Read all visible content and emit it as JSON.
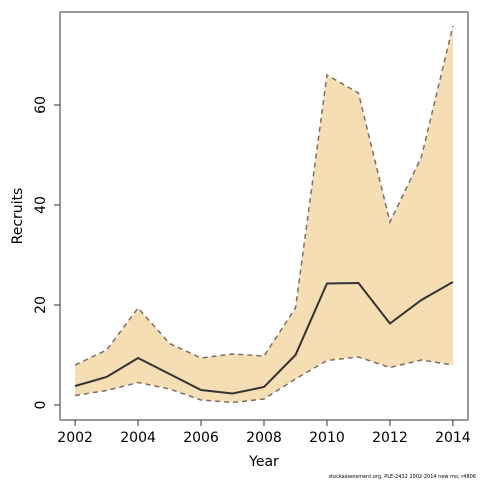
{
  "chart_data": {
    "type": "line",
    "x_label": "Year",
    "y_label": "Recruits",
    "footnote": "stockassessment.org, PLE-2432 2002-2014 new mo, r4806",
    "x": [
      2002,
      2003,
      2004,
      2005,
      2006,
      2007,
      2008,
      2009,
      2010,
      2011,
      2012,
      2013,
      2014
    ],
    "values": [
      3.8,
      5.6,
      9.4,
      6.2,
      3.0,
      2.3,
      3.6,
      10,
      24.3,
      24.4,
      16.3,
      21,
      24.6
    ],
    "upper": [
      8,
      11,
      19.4,
      12.3,
      9.4,
      10.2,
      9.8,
      19.4,
      66,
      62.4,
      36.6,
      49.6,
      75.8
    ],
    "lower": [
      1.9,
      2.9,
      4.5,
      3.2,
      1.0,
      0.5,
      1.2,
      5.2,
      8.9,
      9.6,
      7.5,
      9,
      8
    ],
    "color": "#333333",
    "band_color": "#f5deb3",
    "bound_color": "#7a6e68",
    "xlim": [
      2001.52,
      2014.48
    ],
    "ylim": [
      -3,
      78.6
    ],
    "xticks": [
      2002,
      2004,
      2006,
      2008,
      2010,
      2012,
      2014
    ],
    "yticks": [
      0,
      20,
      40,
      60
    ]
  }
}
